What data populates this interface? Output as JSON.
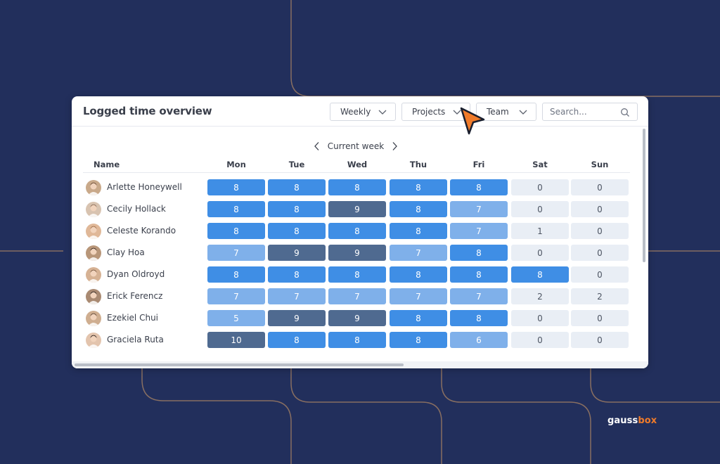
{
  "panel": {
    "title": "Logged time overview",
    "filters": [
      {
        "label": "Weekly"
      },
      {
        "label": "Projects"
      },
      {
        "label": "Team"
      }
    ],
    "search": {
      "placeholder": "Search..."
    },
    "week_nav": {
      "label": "Current week"
    }
  },
  "table": {
    "columns": [
      "Name",
      "Mon",
      "Tue",
      "Wed",
      "Thu",
      "Fri",
      "Sat",
      "Sun"
    ],
    "rows": [
      {
        "name": "Arlette Honeywell",
        "values": [
          8,
          8,
          8,
          8,
          8,
          0,
          0
        ]
      },
      {
        "name": "Cecily Hollack",
        "values": [
          8,
          8,
          9,
          8,
          7,
          0,
          0
        ]
      },
      {
        "name": "Celeste Korando",
        "values": [
          8,
          8,
          8,
          8,
          7,
          1,
          0
        ]
      },
      {
        "name": "Clay Hoa",
        "values": [
          7,
          9,
          9,
          7,
          8,
          0,
          0
        ]
      },
      {
        "name": "Dyan Oldroyd",
        "values": [
          8,
          8,
          8,
          8,
          8,
          8,
          0
        ]
      },
      {
        "name": "Erick Ferencz",
        "values": [
          7,
          7,
          7,
          7,
          7,
          2,
          2
        ]
      },
      {
        "name": "Ezekiel Chui",
        "values": [
          5,
          9,
          9,
          8,
          8,
          0,
          0
        ]
      },
      {
        "name": "Graciela Ruta",
        "values": [
          10,
          8,
          8,
          8,
          6,
          0,
          0
        ]
      }
    ]
  },
  "colors": {
    "background": "#222f5c",
    "line": "#9a7a63",
    "level_empty": "#e9eef5",
    "level_light": "#7fb0ea",
    "level_normal": "#3f8ee5",
    "level_over": "#4f6a90",
    "cursor": "#f07b2a"
  },
  "brand": {
    "part1": "gauss",
    "part2": "box"
  }
}
